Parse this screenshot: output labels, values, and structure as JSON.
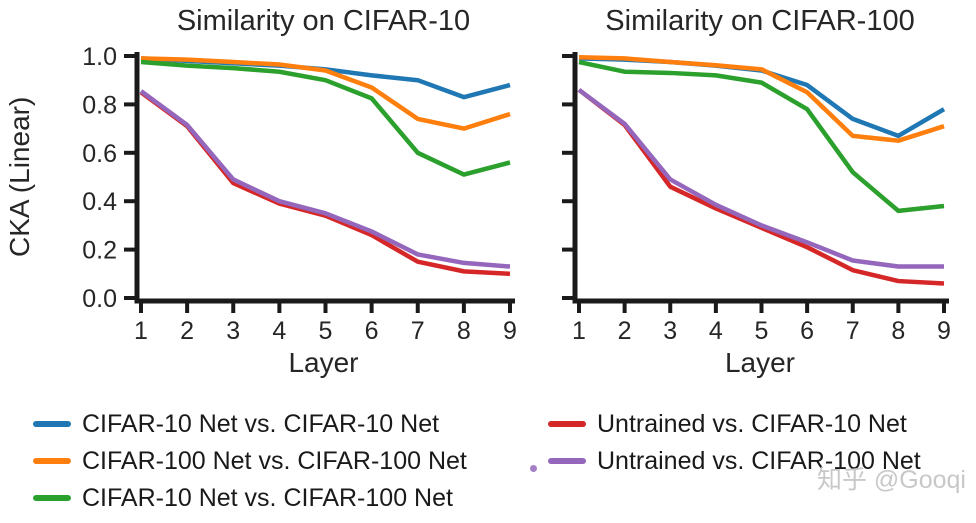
{
  "figure": {
    "watermark": "知乎 @Gooqi"
  },
  "style": {
    "background": "#ffffff",
    "axis_color": "#1a1a1a",
    "text_color": "#262626",
    "series_colors": {
      "blue": "#1f77b4",
      "orange": "#ff7f0e",
      "green": "#2ca02c",
      "red": "#d62728",
      "purple": "#9467bd"
    }
  },
  "chart_data": [
    {
      "type": "line",
      "title": "Similarity on CIFAR-10",
      "xlabel": "Layer",
      "ylabel": "CKA (Linear)",
      "x": [
        1,
        2,
        3,
        4,
        5,
        6,
        7,
        8,
        9
      ],
      "xtick_labels": [
        "1",
        "2",
        "3",
        "4",
        "5",
        "6",
        "7",
        "8",
        "9"
      ],
      "yticks": [
        0.0,
        0.2,
        0.4,
        0.6,
        0.8,
        1.0
      ],
      "ytick_labels": [
        "0.0",
        "0.2",
        "0.4",
        "0.6",
        "0.8",
        "1.0"
      ],
      "ylim": [
        0,
        1
      ],
      "grid": false,
      "show_ytick_labels": true,
      "series": [
        {
          "name": "CIFAR-10 Net vs. CIFAR-10 Net",
          "color": "#1f77b4",
          "values": [
            0.99,
            0.98,
            0.97,
            0.96,
            0.945,
            0.92,
            0.9,
            0.83,
            0.88
          ]
        },
        {
          "name": "CIFAR-100 Net vs. CIFAR-100 Net",
          "color": "#ff7f0e",
          "values": [
            0.99,
            0.985,
            0.975,
            0.965,
            0.94,
            0.87,
            0.74,
            0.7,
            0.76
          ]
        },
        {
          "name": "CIFAR-10 Net vs. CIFAR-100 Net",
          "color": "#2ca02c",
          "values": [
            0.975,
            0.96,
            0.95,
            0.935,
            0.9,
            0.825,
            0.6,
            0.51,
            0.56
          ]
        },
        {
          "name": "Untrained vs. CIFAR-10 Net",
          "color": "#d62728",
          "values": [
            0.85,
            0.71,
            0.475,
            0.39,
            0.34,
            0.26,
            0.15,
            0.11,
            0.1
          ]
        },
        {
          "name": "Untrained vs. CIFAR-100 Net",
          "color": "#9467bd",
          "values": [
            0.855,
            0.715,
            0.49,
            0.4,
            0.35,
            0.275,
            0.18,
            0.145,
            0.13
          ]
        }
      ]
    },
    {
      "type": "line",
      "title": "Similarity on CIFAR-100",
      "xlabel": "Layer",
      "ylabel": "",
      "x": [
        1,
        2,
        3,
        4,
        5,
        6,
        7,
        8,
        9
      ],
      "xtick_labels": [
        "1",
        "2",
        "3",
        "4",
        "5",
        "6",
        "7",
        "8",
        "9"
      ],
      "yticks": [
        0.0,
        0.2,
        0.4,
        0.6,
        0.8,
        1.0
      ],
      "ytick_labels": [
        "0.0",
        "0.2",
        "0.4",
        "0.6",
        "0.8",
        "1.0"
      ],
      "ylim": [
        0,
        1
      ],
      "grid": false,
      "show_ytick_labels": false,
      "series": [
        {
          "name": "CIFAR-10 Net vs. CIFAR-10 Net",
          "color": "#1f77b4",
          "values": [
            0.99,
            0.985,
            0.975,
            0.96,
            0.94,
            0.88,
            0.74,
            0.67,
            0.78
          ]
        },
        {
          "name": "CIFAR-100 Net vs. CIFAR-100 Net",
          "color": "#ff7f0e",
          "values": [
            0.995,
            0.99,
            0.975,
            0.962,
            0.945,
            0.85,
            0.67,
            0.65,
            0.71
          ]
        },
        {
          "name": "CIFAR-10 Net vs. CIFAR-100 Net",
          "color": "#2ca02c",
          "values": [
            0.975,
            0.935,
            0.93,
            0.92,
            0.89,
            0.78,
            0.52,
            0.36,
            0.38
          ]
        },
        {
          "name": "Untrained vs. CIFAR-10 Net",
          "color": "#d62728",
          "values": [
            0.86,
            0.715,
            0.46,
            0.37,
            0.29,
            0.21,
            0.115,
            0.07,
            0.06
          ]
        },
        {
          "name": "Untrained vs. CIFAR-100 Net",
          "color": "#9467bd",
          "values": [
            0.86,
            0.72,
            0.49,
            0.385,
            0.3,
            0.23,
            0.155,
            0.13,
            0.13
          ]
        }
      ]
    }
  ],
  "legend": {
    "position": "below",
    "items": [
      {
        "label": "CIFAR-10 Net vs. CIFAR-10 Net",
        "color": "#1f77b4"
      },
      {
        "label": "CIFAR-100 Net vs. CIFAR-100 Net",
        "color": "#ff7f0e"
      },
      {
        "label": "CIFAR-10 Net vs. CIFAR-100 Net",
        "color": "#2ca02c"
      },
      {
        "label": "Untrained vs. CIFAR-10 Net",
        "color": "#d62728"
      },
      {
        "label": "Untrained vs. CIFAR-100 Net",
        "color": "#9467bd"
      }
    ]
  }
}
